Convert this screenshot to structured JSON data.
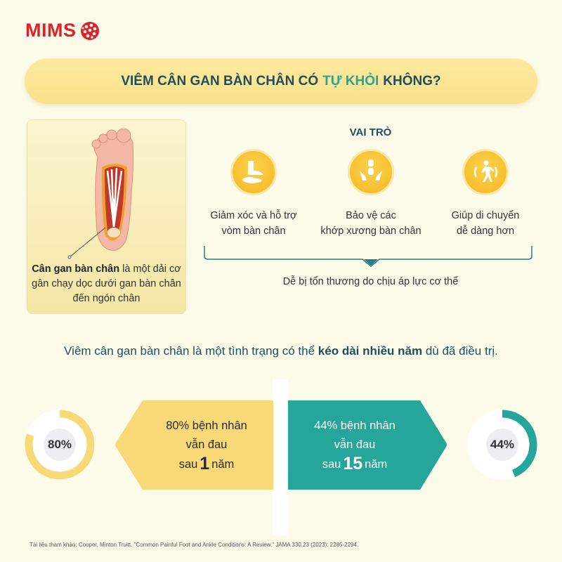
{
  "logo": {
    "text": "MIMS"
  },
  "title": {
    "part1": "VIÊM CÂN GAN BÀN CHÂN CÓ",
    "highlight": "TỰ KHỎI",
    "part2": "KHÔNG?"
  },
  "card": {
    "bold": "Cân gan bàn chân",
    "rest": "là một dải cơ gân chạy dọc dưới gan bàn chân đến ngón chân"
  },
  "roles": {
    "heading": "VAI TRÒ",
    "items": [
      {
        "icon": "foot-support-icon",
        "line1": "Giảm xóc và hỗ trợ",
        "line2": "vòm bàn chân"
      },
      {
        "icon": "joint-protect-icon",
        "line1": "Bảo vệ các",
        "line2": "khớp xương bàn chân"
      },
      {
        "icon": "walking-icon",
        "line1": "Giúp di chuyển",
        "line2": "dễ dàng hơn"
      }
    ],
    "summary": "Dễ bị tổn thương do chịu áp lực cơ thể"
  },
  "sentence": {
    "pre": "Viêm cân gan bàn chân là một tình trạng có thể",
    "bold": "kéo dài nhiều năm",
    "post": "dù đã điều trị."
  },
  "stats": [
    {
      "percent": 80,
      "label": "80%",
      "line1": "80% bệnh nhân",
      "line2": "vẫn đau",
      "pre": "sau",
      "num": "1",
      "post": "năm",
      "color": "#f8d978"
    },
    {
      "percent": 44,
      "label": "44%",
      "line1": "44% bệnh nhân",
      "line2": "vẫn đau",
      "pre": "sau",
      "num": "15",
      "post": "năm",
      "color": "#26a69a"
    }
  ],
  "reference": "Tài liệu tham khảo: Cooper, Minton Truitt. \"Common Painful Foot and Ankle Conditions: A Review.\" JAMA 330.23 (2023): 2285-2294."
}
